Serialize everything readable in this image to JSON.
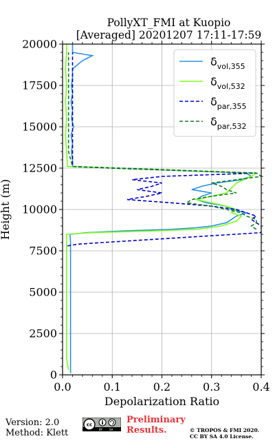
{
  "chart_data": {
    "type": "line",
    "title": [
      "PollyXT_FMI at Kuopio",
      "[Averaged] 20201207 17:11-17:59"
    ],
    "xlabel": "Depolarization Ratio",
    "ylabel": "Height (m)",
    "xlim": [
      0,
      0.4
    ],
    "ylim": [
      0,
      20000
    ],
    "xticks": [
      "0.0",
      "0.1",
      "0.2",
      "0.3",
      "0.4"
    ],
    "yticks": [
      "0",
      "2500",
      "5000",
      "7500",
      "10000",
      "12500",
      "15000",
      "17500",
      "20000"
    ],
    "grid": true,
    "legend_position": "top-right",
    "series": [
      {
        "name": "δvol,355",
        "legend_main": "δ",
        "legend_sub": "vol,355",
        "color": "#2b8fe3",
        "dash": "solid",
        "points": [
          [
            0.016,
            100
          ],
          [
            0.016,
            1000
          ],
          [
            0.016,
            2500
          ],
          [
            0.016,
            4000
          ],
          [
            0.016,
            5500
          ],
          [
            0.016,
            7000
          ],
          [
            0.016,
            8000
          ],
          [
            0.015,
            8500
          ],
          [
            0.05,
            8600
          ],
          [
            0.12,
            8700
          ],
          [
            0.22,
            8800
          ],
          [
            0.27,
            8900
          ],
          [
            0.3,
            9000
          ],
          [
            0.33,
            9200
          ],
          [
            0.34,
            9400
          ],
          [
            0.35,
            9600
          ],
          [
            0.37,
            9800
          ],
          [
            0.34,
            10000
          ],
          [
            0.33,
            10200
          ],
          [
            0.29,
            10400
          ],
          [
            0.27,
            10600
          ],
          [
            0.28,
            10800
          ],
          [
            0.3,
            11000
          ],
          [
            0.26,
            11200
          ],
          [
            0.28,
            11400
          ],
          [
            0.31,
            11600
          ],
          [
            0.36,
            11800
          ],
          [
            0.38,
            12000
          ],
          [
            0.37,
            12200
          ],
          [
            0.1,
            12500
          ],
          [
            0.02,
            12600
          ],
          [
            0.02,
            13000
          ],
          [
            0.018,
            13500
          ],
          [
            0.02,
            14000
          ],
          [
            0.017,
            14500
          ],
          [
            0.022,
            15000
          ],
          [
            0.018,
            15500
          ],
          [
            0.02,
            16000
          ],
          [
            0.017,
            16500
          ],
          [
            0.02,
            17000
          ],
          [
            0.018,
            17500
          ],
          [
            0.02,
            18000
          ],
          [
            0.02,
            18500
          ],
          [
            0.04,
            19000
          ],
          [
            0.06,
            19300
          ],
          [
            0.02,
            19500
          ],
          [
            0.02,
            20000
          ]
        ]
      },
      {
        "name": "δvol,532",
        "legend_main": "δ",
        "legend_sub": "vol,532",
        "color": "#7cff1a",
        "dash": "solid",
        "points": [
          [
            0.012,
            300
          ],
          [
            0.008,
            1000
          ],
          [
            0.008,
            2500
          ],
          [
            0.008,
            4000
          ],
          [
            0.008,
            5500
          ],
          [
            0.008,
            7000
          ],
          [
            0.008,
            8000
          ],
          [
            0.008,
            8500
          ],
          [
            0.06,
            8600
          ],
          [
            0.18,
            8700
          ],
          [
            0.27,
            8800
          ],
          [
            0.32,
            9000
          ],
          [
            0.35,
            9300
          ],
          [
            0.36,
            9600
          ],
          [
            0.34,
            9800
          ],
          [
            0.35,
            10000
          ],
          [
            0.33,
            10200
          ],
          [
            0.3,
            10400
          ],
          [
            0.27,
            10600
          ],
          [
            0.3,
            10800
          ],
          [
            0.33,
            11000
          ],
          [
            0.34,
            11300
          ],
          [
            0.35,
            11600
          ],
          [
            0.38,
            12000
          ],
          [
            0.39,
            12200
          ],
          [
            0.1,
            12500
          ],
          [
            0.01,
            12600
          ],
          [
            0.008,
            13500
          ],
          [
            0.006,
            14500
          ],
          [
            0.008,
            15500
          ],
          [
            0.006,
            16500
          ],
          [
            0.008,
            17500
          ],
          [
            0.006,
            18500
          ],
          [
            0.008,
            19500
          ],
          [
            0.008,
            20000
          ]
        ]
      },
      {
        "name": "δpar,355",
        "legend_main": "δ",
        "legend_sub": "par,355",
        "color": "#0000c8",
        "dash": "dashed",
        "points": [
          [
            0.01,
            7800
          ],
          [
            0.03,
            7900
          ],
          [
            0.08,
            8000
          ],
          [
            0.4,
            8600
          ],
          [
            0.4,
            9000
          ],
          [
            0.39,
            9200
          ],
          [
            0.38,
            9400
          ],
          [
            0.39,
            9600
          ],
          [
            0.37,
            9800
          ],
          [
            0.35,
            10000
          ],
          [
            0.3,
            10200
          ],
          [
            0.22,
            10400
          ],
          [
            0.13,
            10600
          ],
          [
            0.17,
            10800
          ],
          [
            0.2,
            11000
          ],
          [
            0.15,
            11200
          ],
          [
            0.18,
            11400
          ],
          [
            0.2,
            11600
          ],
          [
            0.14,
            11800
          ],
          [
            0.2,
            12000
          ],
          [
            0.39,
            12200
          ],
          [
            0.1,
            12500
          ],
          [
            0.02,
            12600
          ],
          [
            0.02,
            13500
          ],
          [
            0.02,
            14500
          ],
          [
            0.02,
            15500
          ],
          [
            0.02,
            16500
          ],
          [
            0.02,
            17500
          ],
          [
            0.02,
            18500
          ],
          [
            0.02,
            19500
          ]
        ]
      },
      {
        "name": "δpar,532",
        "legend_main": "δ",
        "legend_sub": "par,532",
        "color": "#127a2a",
        "dash": "dashed",
        "points": [
          [
            0.39,
            8800
          ],
          [
            0.38,
            9000
          ],
          [
            0.39,
            9200
          ],
          [
            0.39,
            9400
          ],
          [
            0.37,
            9600
          ],
          [
            0.36,
            9800
          ],
          [
            0.33,
            10000
          ],
          [
            0.3,
            10200
          ],
          [
            0.25,
            10400
          ],
          [
            0.26,
            10600
          ],
          [
            0.3,
            10800
          ],
          [
            0.35,
            11000
          ],
          [
            0.33,
            11200
          ],
          [
            0.32,
            11400
          ],
          [
            0.3,
            11600
          ],
          [
            0.35,
            11800
          ],
          [
            0.4,
            12000
          ],
          [
            0.39,
            12200
          ],
          [
            0.12,
            12500
          ],
          [
            0.02,
            12600
          ],
          [
            0.012,
            13500
          ],
          [
            0.012,
            14500
          ],
          [
            0.012,
            15500
          ],
          [
            0.012,
            16500
          ],
          [
            0.012,
            17500
          ],
          [
            0.012,
            18500
          ],
          [
            0.012,
            19500
          ]
        ]
      }
    ]
  },
  "footer": {
    "version": "Version: 2.0",
    "method": "Method: Klett",
    "preliminary_line1": "Preliminary",
    "preliminary_line2": "Results.",
    "copyright": "© TROPOS & FMI 2020.",
    "license": "CC BY SA 4.0 License.",
    "license_badge": "cc-by-sa-icon"
  }
}
